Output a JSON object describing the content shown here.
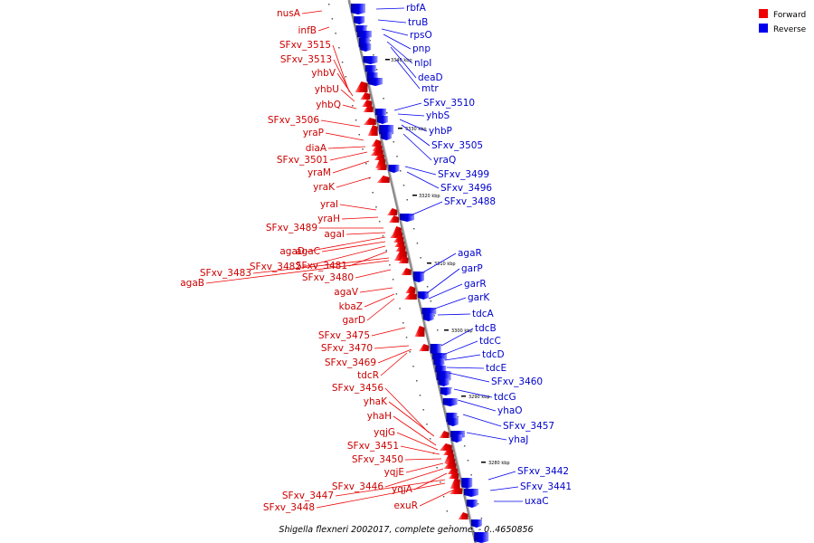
{
  "title": "Shigella flexneri 2002017, complete genome. - 0..4650856",
  "legend": [
    {
      "label": "Forward",
      "color": "#ee0000"
    },
    {
      "label": "Reverse",
      "color": "#0000ee"
    }
  ],
  "colors": {
    "forward": "#ee0000",
    "reverse": "#0000ee",
    "axis": "#999999"
  },
  "scale_ticks": [
    "3340 kbp",
    "3330 kbp",
    "3320 kbp",
    "3310 kbp",
    "3300 kbp",
    "3290 kbp",
    "3280 kbp"
  ],
  "forward_labels": [
    "nusA",
    "infB",
    "SFxv_3515",
    "SFxv_3513",
    "yhbV",
    "yhbU",
    "yhbQ",
    "SFxv_3506",
    "yraP",
    "diaA",
    "SFxv_3501",
    "yraM",
    "yraK",
    "yraI",
    "yraH",
    "SFxv_3489",
    "agaI",
    "agaD",
    "agaC",
    "SFxv_3482",
    "SFxv_3481",
    "SFxv_3483",
    "agaB",
    "SFxv_3480",
    "agaV",
    "kbaZ",
    "garD",
    "SFxv_3475",
    "SFxv_3470",
    "SFxv_3469",
    "tdcR",
    "SFxv_3456",
    "yhaK",
    "yhaH",
    "yqjG",
    "SFxv_3451",
    "SFxv_3450",
    "yqjE",
    "SFxv_3446",
    "yqjA",
    "SFxv_3447",
    "SFxv_3448",
    "exuR"
  ],
  "reverse_labels": [
    "rbfA",
    "truB",
    "rpsO",
    "pnp",
    "nlpI",
    "deaD",
    "mtr",
    "SFxv_3510",
    "yhbS",
    "yhbP",
    "SFxv_3505",
    "yraQ",
    "SFxv_3499",
    "SFxv_3496",
    "SFxv_3488",
    "agaR",
    "garP",
    "garR",
    "garK",
    "tdcA",
    "tdcB",
    "tdcC",
    "tdcD",
    "tdcE",
    "SFxv_3460",
    "tdcG",
    "yhaO",
    "SFxv_3457",
    "yhaJ",
    "SFxv_3442",
    "SFxv_3441",
    "uxaC"
  ]
}
